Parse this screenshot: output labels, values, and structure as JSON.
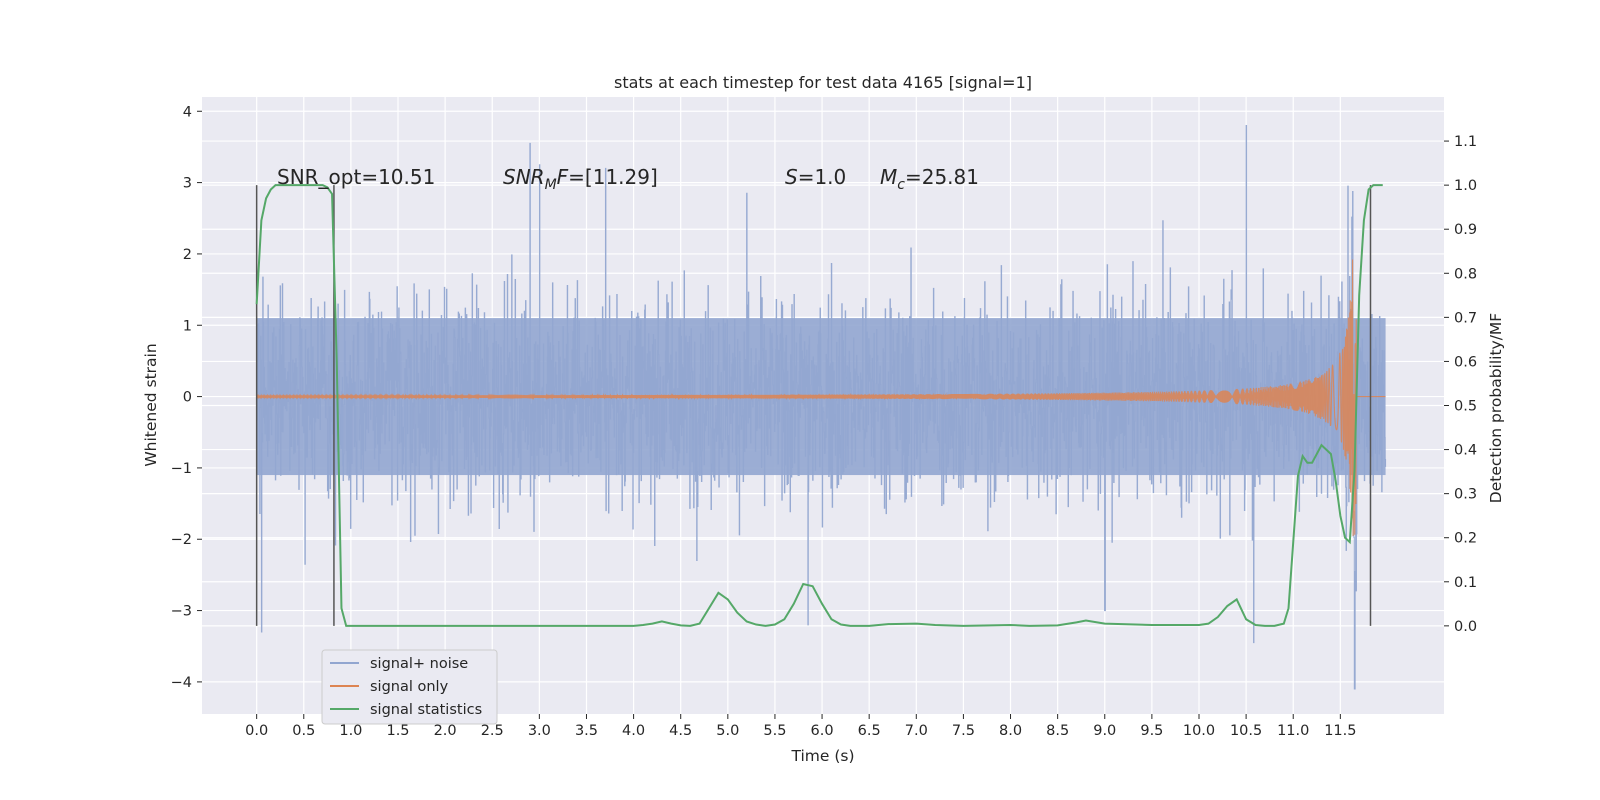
{
  "colors": {
    "plot_bg": "#eaeaf2",
    "grid": "#ffffff",
    "noise": "#92a6d0",
    "signal": "#dd8452",
    "stats": "#55a868",
    "vline": "#555555",
    "text": "#262626"
  },
  "chart_data": {
    "type": "line",
    "title": "stats at each timestep for test data 4165 [signal=1]",
    "xlabel": "Time (s)",
    "ylabel": "Whitened strain",
    "y2label": "Detection probability/MF",
    "xlim": [
      -0.58,
      12.6
    ],
    "ylim": [
      -4.45,
      4.2
    ],
    "y2lim": [
      -0.2,
      1.2
    ],
    "xticks": [
      "0.0",
      "0.5",
      "1.0",
      "1.5",
      "2.0",
      "2.5",
      "3.0",
      "3.5",
      "4.0",
      "4.5",
      "5.0",
      "5.5",
      "6.0",
      "6.5",
      "7.0",
      "7.5",
      "8.0",
      "8.5",
      "9.0",
      "9.5",
      "10.0",
      "10.5",
      "11.0",
      "11.5"
    ],
    "yticks": [
      "−4",
      "−3",
      "−2",
      "−1",
      "0",
      "1",
      "2",
      "3",
      "4"
    ],
    "y2ticks": [
      "0.0",
      "0.1",
      "0.2",
      "0.3",
      "0.4",
      "0.5",
      "0.6",
      "0.7",
      "0.8",
      "0.9",
      "1.0",
      "1.1"
    ],
    "grid": true,
    "legend_position": "lower-left",
    "annotations": {
      "snr_opt": "SNR_opt=10.51",
      "snr_mf_prefix": "SNR",
      "snr_mf_sub": "M",
      "snr_mf_suffix": "F=[11.29]",
      "s_prefix": "S",
      "s_suffix": "=1.0",
      "mc_prefix": "M",
      "mc_sub": "c",
      "mc_suffix": "=25.81"
    },
    "vertical_markers": [
      0.0,
      0.82,
      11.82
    ],
    "series": [
      {
        "name": "signal+ noise",
        "description_note": "",
        "x_range": [
          0.0,
          11.98
        ],
        "envelope_upper": 1.75,
        "envelope_lower": -1.45,
        "peaks": [
          [
            2.9,
            3.55
          ],
          [
            3.0,
            3.25
          ],
          [
            3.7,
            3.2
          ],
          [
            5.2,
            2.85
          ],
          [
            10.5,
            3.8
          ],
          [
            11.58,
            2.95
          ],
          [
            11.65,
            2.3
          ]
        ],
        "troughs": [
          [
            0.05,
            -3.3
          ],
          [
            5.85,
            -3.2
          ],
          [
            10.58,
            -3.45
          ],
          [
            11.65,
            -4.1
          ],
          [
            9.0,
            -3.0
          ]
        ]
      },
      {
        "name": "signal only",
        "x_range": [
          0.0,
          11.98
        ],
        "chirp_peak_time": 11.65,
        "chirp_peak_amplitude": 2.1
      },
      {
        "name": "signal statistics",
        "x": [
          0.0,
          0.05,
          0.1,
          0.15,
          0.2,
          0.3,
          0.4,
          0.5,
          0.6,
          0.7,
          0.75,
          0.8,
          0.85,
          0.9,
          0.95,
          1.0,
          1.2,
          1.5,
          2.0,
          3.0,
          4.0,
          4.1,
          4.2,
          4.3,
          4.4,
          4.5,
          4.6,
          4.7,
          4.8,
          4.9,
          5.0,
          5.1,
          5.2,
          5.3,
          5.4,
          5.5,
          5.6,
          5.7,
          5.8,
          5.9,
          6.0,
          6.1,
          6.2,
          6.3,
          6.4,
          6.5,
          6.7,
          7.0,
          7.2,
          7.5,
          8.0,
          8.2,
          8.5,
          8.7,
          8.8,
          9.0,
          9.5,
          10.0,
          10.1,
          10.2,
          10.3,
          10.4,
          10.5,
          10.6,
          10.7,
          10.8,
          10.9,
          10.95,
          11.0,
          11.05,
          11.1,
          11.15,
          11.2,
          11.3,
          11.4,
          11.45,
          11.5,
          11.55,
          11.6,
          11.65,
          11.7,
          11.75,
          11.8,
          11.85,
          11.9,
          11.95
        ],
        "values": [
          0.73,
          0.92,
          0.97,
          0.99,
          1.0,
          1.0,
          1.0,
          1.0,
          1.0,
          1.0,
          0.995,
          0.98,
          0.6,
          0.04,
          0.0,
          0.0,
          0.0,
          0.0,
          0.0,
          0.0,
          0.0,
          0.002,
          0.005,
          0.01,
          0.005,
          0.001,
          0.0,
          0.005,
          0.04,
          0.075,
          0.06,
          0.03,
          0.01,
          0.003,
          0.0,
          0.003,
          0.015,
          0.05,
          0.095,
          0.09,
          0.05,
          0.015,
          0.003,
          0.0,
          0.0,
          0.0,
          0.004,
          0.005,
          0.002,
          0.0,
          0.002,
          0.0,
          0.001,
          0.008,
          0.012,
          0.005,
          0.002,
          0.002,
          0.005,
          0.02,
          0.045,
          0.06,
          0.015,
          0.002,
          0.0,
          0.0,
          0.005,
          0.04,
          0.19,
          0.34,
          0.385,
          0.37,
          0.37,
          0.41,
          0.39,
          0.33,
          0.25,
          0.2,
          0.19,
          0.35,
          0.75,
          0.92,
          0.99,
          1.0,
          1.0,
          1.0
        ]
      }
    ]
  }
}
